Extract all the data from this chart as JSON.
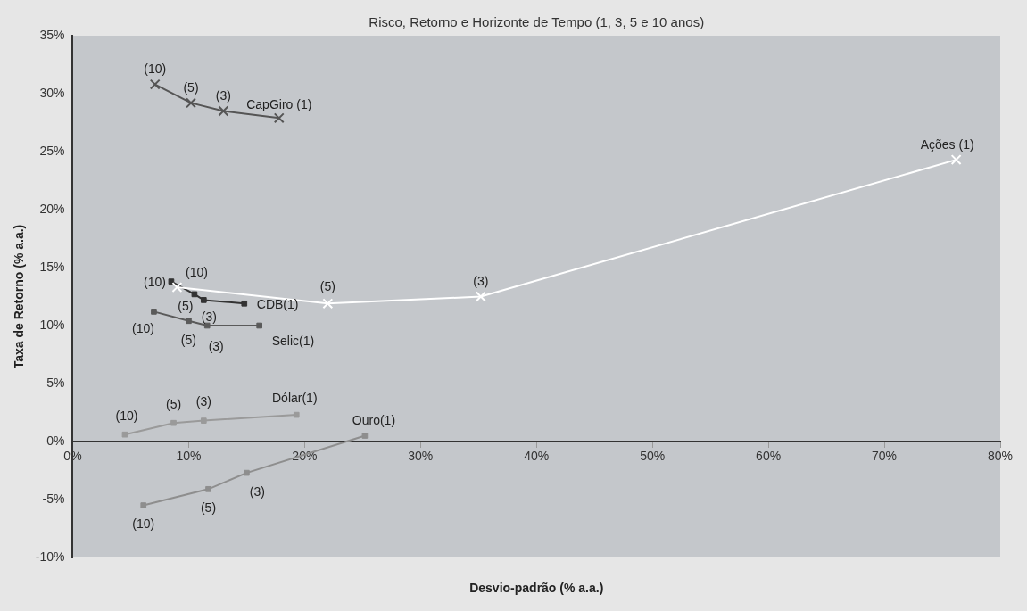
{
  "chart_data": {
    "type": "scatter",
    "title": "Risco, Retorno e Horizonte de Tempo (1, 3, 5 e 10 anos)",
    "xlabel": "Desvio-padrão (% a.a.)",
    "ylabel": "Taxa de Retorno (% a.a.)",
    "series": [
      {
        "type": "line",
        "marker": "cross",
        "color": "#555555",
        "x": [
          7.1,
          10.2,
          13.0,
          17.8
        ],
        "values": [
          30.8,
          29.2,
          28.5,
          27.9
        ]
      },
      {
        "type": "line",
        "marker": "cross",
        "color": "#ffffff",
        "x": [
          9.0,
          22.0,
          35.2,
          76.2
        ],
        "values": [
          13.3,
          11.9,
          12.5,
          24.3
        ]
      },
      {
        "type": "line",
        "marker": "square",
        "color": "#333333",
        "x": [
          8.5,
          10.5,
          11.3,
          14.8
        ],
        "values": [
          13.8,
          12.7,
          12.2,
          11.9
        ]
      },
      {
        "type": "line",
        "marker": "square",
        "color": "#5a5a5a",
        "x": [
          7.0,
          10.0,
          11.6,
          16.1
        ],
        "values": [
          11.2,
          10.4,
          10.0,
          10.0
        ]
      },
      {
        "type": "line",
        "marker": "square",
        "color": "#9a9a9a",
        "x": [
          4.5,
          8.7,
          11.3,
          19.3
        ],
        "values": [
          0.6,
          1.6,
          1.8,
          2.3
        ]
      },
      {
        "type": "line",
        "marker": "square",
        "color": "#8e8e8e",
        "x": [
          6.1,
          11.7,
          15.0,
          25.2
        ],
        "values": [
          -5.5,
          -4.1,
          -2.7,
          0.5
        ]
      }
    ],
    "xlim": [
      0,
      80
    ],
    "ylim": [
      -10,
      35
    ],
    "xticks": [
      {
        "value": 0,
        "label": "0%"
      },
      {
        "value": 10,
        "label": "10%"
      },
      {
        "value": 20,
        "label": "20%"
      },
      {
        "value": 30,
        "label": "30%"
      },
      {
        "value": 40,
        "label": "40%"
      },
      {
        "value": 50,
        "label": "50%"
      },
      {
        "value": 60,
        "label": "60%"
      },
      {
        "value": 70,
        "label": "70%"
      },
      {
        "value": 80,
        "label": "80%"
      }
    ],
    "yticks": [
      {
        "value": -10,
        "label": "-10%"
      },
      {
        "value": -5,
        "label": "-5%"
      },
      {
        "value": 0,
        "label": "0%"
      },
      {
        "value": 5,
        "label": "5%"
      },
      {
        "value": 10,
        "label": "10%"
      },
      {
        "value": 15,
        "label": "15%"
      },
      {
        "value": 20,
        "label": "20%"
      },
      {
        "value": 25,
        "label": "25%"
      },
      {
        "value": 30,
        "label": "30%"
      },
      {
        "value": 35,
        "label": "35%"
      }
    ],
    "grid": false,
    "legend": false,
    "annotations": [
      {
        "text": "(10)",
        "x": 7.1,
        "y": 30.8
      },
      {
        "text": "(5)",
        "x": 10.2,
        "y": 29.2
      },
      {
        "text": "(3)",
        "x": 13.0,
        "y": 28.5
      },
      {
        "text": "CapGiro (1)",
        "x": 17.8,
        "y": 27.9
      },
      {
        "text": "(10)",
        "x": 9.0,
        "y": 13.3
      },
      {
        "text": "(5)",
        "x": 22.0,
        "y": 11.9
      },
      {
        "text": "(3)",
        "x": 35.2,
        "y": 12.5
      },
      {
        "text": "Ações (1)",
        "x": 76.2,
        "y": 24.3
      },
      {
        "text": "(10)",
        "x": 8.5,
        "y": 13.8
      },
      {
        "text": "(5)",
        "x": 10.5,
        "y": 12.7
      },
      {
        "text": "(3)",
        "x": 11.3,
        "y": 12.2
      },
      {
        "text": "CDB(1)",
        "x": 14.8,
        "y": 11.9
      },
      {
        "text": "(10)",
        "x": 7.0,
        "y": 11.2
      },
      {
        "text": "(5)",
        "x": 10.0,
        "y": 10.4
      },
      {
        "text": "(3)",
        "x": 11.6,
        "y": 10.0
      },
      {
        "text": "Selic(1)",
        "x": 16.1,
        "y": 10.0
      },
      {
        "text": "(10)",
        "x": 4.5,
        "y": 0.6
      },
      {
        "text": "(5)",
        "x": 8.7,
        "y": 1.6
      },
      {
        "text": "(3)",
        "x": 11.3,
        "y": 1.8
      },
      {
        "text": "Dólar(1)",
        "x": 19.3,
        "y": 2.3
      },
      {
        "text": "(10)",
        "x": 6.1,
        "y": -5.5
      },
      {
        "text": "(5)",
        "x": 11.7,
        "y": -4.1
      },
      {
        "text": "(3)",
        "x": 15.0,
        "y": -2.7
      },
      {
        "text": "Ouro(1)",
        "x": 25.2,
        "y": 0.5
      }
    ]
  }
}
